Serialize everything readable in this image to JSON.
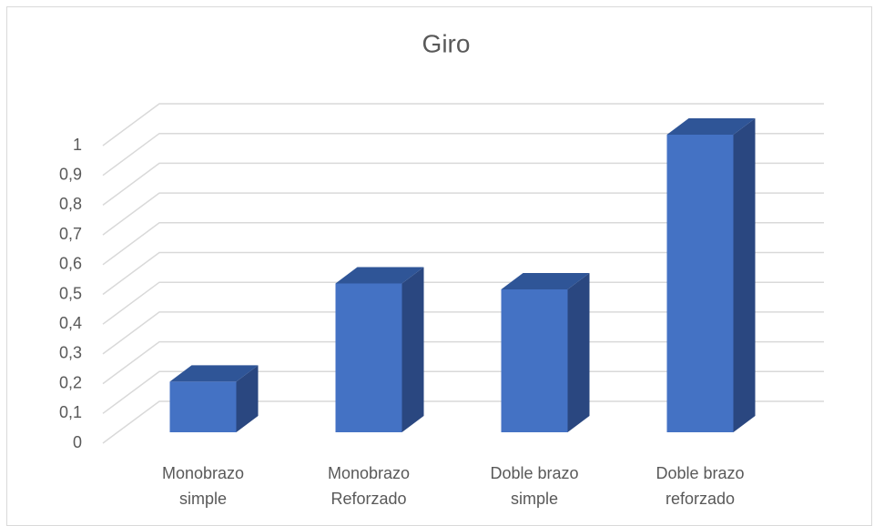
{
  "chart_data": {
    "type": "bar3d",
    "title": "Giro",
    "categories": [
      "Monobrazo simple",
      "Monobrazo Reforzado",
      "Doble brazo simple",
      "Doble brazo reforzado"
    ],
    "values": [
      0.17,
      0.5,
      0.48,
      1
    ],
    "color": "#4472c4",
    "ylim": [
      0,
      1
    ],
    "yticks": [
      0,
      {
        "value": 0.1,
        "label": "0,1"
      },
      {
        "value": 0.2,
        "label": "0,2"
      },
      {
        "value": 0.3,
        "label": "0,3"
      },
      {
        "value": 0.4,
        "label": "0,4"
      },
      {
        "value": 0.5,
        "label": "0,5"
      },
      {
        "value": 0.6,
        "label": "0,6"
      },
      {
        "value": 0.7,
        "label": "0,7"
      },
      {
        "value": 0.8,
        "label": "0,8"
      },
      {
        "value": 0.9,
        "label": "0,9"
      },
      1
    ],
    "grid": true
  }
}
